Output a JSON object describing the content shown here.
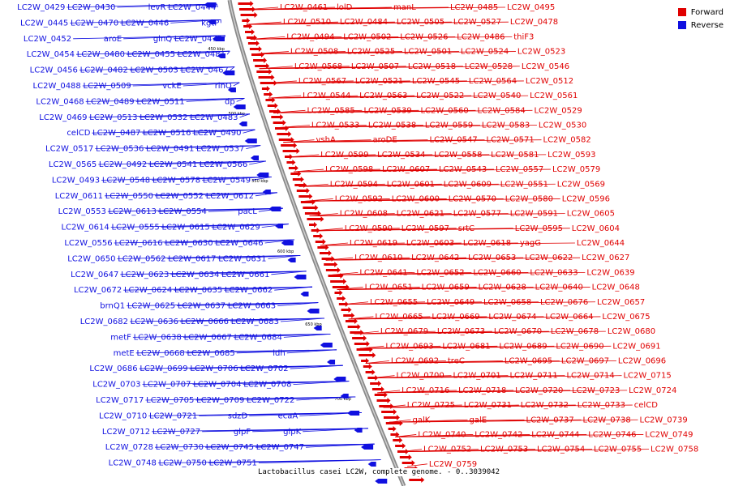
{
  "legend": {
    "forward_label": "Forward",
    "reverse_label": "Reverse",
    "forward_color": "#e00000",
    "reverse_color": "#1010e0"
  },
  "footer": "Lactobacillus casei LC2W, complete genome. - 0..3039042",
  "ticks": [
    "450 kbp",
    "500 kbp",
    "550 kbp",
    "600 kbp",
    "650 kbp",
    "700 kbp"
  ],
  "reverse_labels": [
    "LC2W_0429",
    "LC2W_0430",
    "levR",
    "LC2W_0444",
    "LC2W_0445",
    "LC2W_0470",
    "LC2W_0446",
    "kgtP",
    "LC2W_0452",
    "aroE",
    "glnQ",
    "LC2W_0479",
    "LC2W_0454",
    "LC2W_0480",
    "LC2W_0455",
    "LC2W_0481",
    "LC2W_0456",
    "LC2W_0482",
    "LC2W_0503",
    "LC2W_0467",
    "LC2W_0488",
    "LC2W_0509",
    "vckE",
    "rinQ",
    "LC2W_0468",
    "LC2W_0489",
    "LC2W_0511",
    "dp",
    "LC2W_0469",
    "LC2W_0513",
    "LC2W_0532",
    "LC2W_0483",
    "celCD",
    "LC2W_0487",
    "LC2W_0516",
    "LC2W_0490",
    "LC2W_0517",
    "LC2W_0536",
    "LC2W_0491",
    "LC2W_0537",
    "LC2W_0565",
    "LC2W_0492",
    "LC2W_0541",
    "LC2W_0566",
    "LC2W_0493",
    "LC2W_0548",
    "LC2W_0578",
    "LC2W_0549",
    "LC2W_0611",
    "LC2W_0550",
    "LC2W_0552",
    "LC2W_0612",
    "LC2W_0553",
    "LC2W_0613",
    "LC2W_0554",
    "pacL",
    "LC2W_0614",
    "LC2W_0555",
    "LC2W_0615",
    "LC2W_0629",
    "LC2W_0556",
    "LC2W_0616",
    "LC2W_0630",
    "LC2W_0646",
    "LC2W_0650",
    "LC2W_0562",
    "LC2W_0617",
    "LC2W_0631",
    "LC2W_0647",
    "LC2W_0623",
    "LC2W_0634",
    "LC2W_0661",
    "LC2W_0672",
    "LC2W_0624",
    "LC2W_0635",
    "LC2W_0662",
    "brnQ1",
    "LC2W_0625",
    "LC2W_0637",
    "LC2W_0663",
    "LC2W_0682",
    "LC2W_0636",
    "LC2W_0666",
    "LC2W_0683",
    "metF",
    "LC2W_0638",
    "LC2W_0667",
    "LC2W_0684",
    "metE",
    "LC2W_0668",
    "LC2W_0685",
    "ldh",
    "LC2W_0686",
    "LC2W_0699",
    "LC2W_0706",
    "LC2W_0702",
    "LC2W_0703",
    "LC2W_0707",
    "LC2W_0704",
    "LC2W_0708",
    "LC2W_0717",
    "LC2W_0705",
    "LC2W_0709",
    "LC2W_0722",
    "LC2W_0710",
    "LC2W_0721",
    "sdzD",
    "ecaA",
    "LC2W_0712",
    "LC2W_0727",
    "glpF",
    "glpK",
    "LC2W_0728",
    "LC2W_0730",
    "LC2W_0745",
    "LC2W_0747",
    "LC2W_0748",
    "LC2W_0750",
    "LC2W_0751"
  ],
  "forward_labels": [
    "LC2W_0461",
    "lolD",
    "manL",
    "LC2W_0485",
    "LC2W_0495",
    "LC2W_0510",
    "LC2W_0484",
    "LC2W_0505",
    "LC2W_0527",
    "LC2W_0478",
    "LC2W_0494",
    "LC2W_0502",
    "LC2W_0526",
    "LC2W_0486",
    "thiF3",
    "LC2W_0508",
    "LC2W_0525",
    "LC2W_0501",
    "LC2W_0524",
    "LC2W_0523",
    "LC2W_0568",
    "LC2W_0507",
    "LC2W_0518",
    "LC2W_0528",
    "LC2W_0546",
    "LC2W_0567",
    "LC2W_0521",
    "LC2W_0545",
    "LC2W_0564",
    "LC2W_0512",
    "LC2W_0544",
    "LC2W_0563",
    "LC2W_0522",
    "LC2W_0540",
    "LC2W_0561",
    "LC2W_0585",
    "LC2W_0539",
    "LC2W_0560",
    "LC2W_0584",
    "LC2W_0529",
    "LC2W_0533",
    "LC2W_0538",
    "LC2W_0559",
    "LC2W_0583",
    "LC2W_0530",
    "vshA",
    "aroDE",
    "LC2W_0547",
    "LC2W_0571",
    "LC2W_0582",
    "LC2W_0599",
    "LC2W_0534",
    "LC2W_0558",
    "LC2W_0581",
    "LC2W_0593",
    "LC2W_0598",
    "LC2W_0607",
    "LC2W_0543",
    "LC2W_0557",
    "LC2W_0579",
    "LC2W_0594",
    "LC2W_0601",
    "LC2W_0609",
    "LC2W_0551",
    "LC2W_0569",
    "LC2W_0592",
    "LC2W_0600",
    "LC2W_0570",
    "LC2W_0580",
    "LC2W_0596",
    "LC2W_0608",
    "LC2W_0621",
    "LC2W_0577",
    "LC2W_0591",
    "LC2W_0605",
    "LC2W_0590",
    "LC2W_0597",
    "srtC",
    "LC2W_0595",
    "LC2W_0604",
    "LC2W_0619",
    "LC2W_0603",
    "LC2W_0618",
    "yagG",
    "LC2W_0644",
    "LC2W_0610",
    "LC2W_0642",
    "LC2W_0653",
    "LC2W_0622",
    "LC2W_0627",
    "LC2W_0641",
    "LC2W_0652",
    "LC2W_0660",
    "LC2W_0633",
    "LC2W_0639",
    "LC2W_0651",
    "LC2W_0659",
    "LC2W_0628",
    "LC2W_0640",
    "LC2W_0648",
    "LC2W_0655",
    "LC2W_0649",
    "LC2W_0658",
    "LC2W_0676",
    "LC2W_0657",
    "LC2W_0665",
    "LC2W_0669",
    "LC2W_0674",
    "LC2W_0664",
    "LC2W_0675",
    "LC2W_0679",
    "LC2W_0673",
    "LC2W_0670",
    "LC2W_0678",
    "LC2W_0680",
    "LC2W_0693",
    "LC2W_0681",
    "LC2W_0689",
    "LC2W_0690",
    "LC2W_0691",
    "LC2W_0692",
    "treC",
    "LC2W_0695",
    "LC2W_0697",
    "LC2W_0696",
    "LC2W_0700",
    "LC2W_0701",
    "LC2W_0711",
    "LC2W_0714",
    "LC2W_0715",
    "LC2W_0716",
    "LC2W_0718",
    "LC2W_0720",
    "LC2W_0723",
    "LC2W_0724",
    "LC2W_0725",
    "LC2W_0731",
    "LC2W_0732",
    "LC2W_0733",
    "celCD",
    "galK",
    "galE",
    "LC2W_0737",
    "LC2W_0738",
    "LC2W_0739",
    "LC2W_0740",
    "LC2W_0742",
    "LC2W_0744",
    "LC2W_0746",
    "LC2W_0749",
    "LC2W_0752",
    "LC2W_0753",
    "LC2W_0754",
    "LC2W_0755",
    "LC2W_0758",
    "LC2W_0759"
  ]
}
